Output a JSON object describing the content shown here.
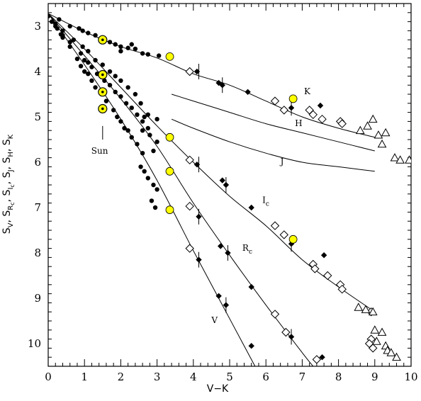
{
  "chart_data": {
    "type": "scatter",
    "xlabel": "V−K",
    "ylabel_text": "S_V, S_Rc, S_Ic, S_J, S_H, S_K",
    "xlim": [
      0,
      10
    ],
    "ylim": [
      10.5,
      2.5
    ],
    "x_ticks": [
      0,
      1,
      2,
      3,
      4,
      5,
      6,
      7,
      8,
      9,
      10
    ],
    "y_ticks": [
      3,
      4,
      5,
      6,
      7,
      8,
      9,
      10
    ],
    "colors": {
      "axis": "#000000",
      "highlight": "#ffff00"
    },
    "series_labels": [
      {
        "text": "K",
        "sub": "",
        "x": 7.05,
        "y": 4.5
      },
      {
        "text": "H",
        "sub": "",
        "x": 6.8,
        "y": 5.2
      },
      {
        "text": "J",
        "sub": "",
        "x": 6.4,
        "y": 6.05
      },
      {
        "text": "I",
        "sub": "c",
        "x": 5.9,
        "y": 6.9
      },
      {
        "text": "R",
        "sub": "c",
        "x": 5.35,
        "y": 7.95
      },
      {
        "text": "V",
        "sub": "",
        "x": 4.5,
        "y": 9.55
      }
    ],
    "annotation": {
      "text": "Sun",
      "x": 1.5,
      "y": 5.75,
      "marker_y": [
        5.2,
        5.5
      ]
    },
    "series": [
      {
        "name": "S_V",
        "fit": [
          [
            0,
            2.72
          ],
          [
            1,
            3.85
          ],
          [
            2,
            5.05
          ],
          [
            3,
            6.4
          ],
          [
            4,
            7.95
          ],
          [
            5,
            9.45
          ],
          [
            6,
            10.95
          ]
        ],
        "dots": [
          [
            0.0,
            2.78
          ],
          [
            0.2,
            3.0
          ],
          [
            0.35,
            3.18
          ],
          [
            0.4,
            3.25
          ],
          [
            0.6,
            3.45
          ],
          [
            0.8,
            3.72
          ],
          [
            0.9,
            3.88
          ],
          [
            1.0,
            4.0
          ],
          [
            1.1,
            4.05
          ],
          [
            1.2,
            4.2
          ],
          [
            1.3,
            4.35
          ],
          [
            1.45,
            4.45
          ],
          [
            1.6,
            4.65
          ],
          [
            1.8,
            4.85
          ],
          [
            1.9,
            5.0
          ],
          [
            2.0,
            5.1
          ],
          [
            2.1,
            5.25
          ],
          [
            2.2,
            5.3
          ],
          [
            2.3,
            5.45
          ],
          [
            2.45,
            5.6
          ],
          [
            2.6,
            5.8
          ],
          [
            2.55,
            6.1
          ],
          [
            2.65,
            6.2
          ],
          [
            2.75,
            6.35
          ],
          [
            2.9,
            6.5
          ],
          [
            3.0,
            6.6
          ],
          [
            2.85,
            6.85
          ],
          [
            2.95,
            7.0
          ]
        ],
        "sun": [
          1.5,
          4.82
        ],
        "yellow": [
          [
            3.35,
            7.05
          ]
        ],
        "filled_diamonds": [
          [
            4.15,
            8.15
          ],
          [
            4.9,
            9.15
          ],
          [
            4.7,
            8.95
          ],
          [
            5.6,
            10.05
          ]
        ],
        "filled_diamonds_err": [
          [
            4.15,
            8.15
          ],
          [
            4.9,
            9.15
          ]
        ],
        "open_diamonds": [
          [
            3.9,
            7.9
          ]
        ]
      },
      {
        "name": "S_Rc",
        "fit": [
          [
            0,
            2.72
          ],
          [
            1,
            3.65
          ],
          [
            2,
            4.6
          ],
          [
            3,
            5.65
          ],
          [
            4,
            6.9
          ],
          [
            5,
            8.05
          ],
          [
            6,
            9.15
          ],
          [
            7,
            10.2
          ],
          [
            7.3,
            10.5
          ]
        ],
        "dots": [
          [
            0.1,
            2.9
          ],
          [
            0.25,
            3.05
          ],
          [
            0.4,
            3.2
          ],
          [
            0.6,
            3.35
          ],
          [
            0.9,
            3.6
          ],
          [
            1.0,
            3.75
          ],
          [
            1.1,
            3.8
          ],
          [
            1.2,
            3.9
          ],
          [
            1.35,
            4.05
          ],
          [
            1.55,
            4.2
          ],
          [
            1.7,
            4.3
          ],
          [
            1.85,
            4.45
          ],
          [
            2.0,
            4.55
          ],
          [
            2.15,
            4.7
          ],
          [
            2.3,
            4.8
          ],
          [
            2.45,
            4.95
          ],
          [
            2.6,
            5.1
          ],
          [
            2.75,
            5.25
          ],
          [
            2.8,
            5.4
          ],
          [
            3.0,
            5.55
          ],
          [
            2.6,
            5.3
          ],
          [
            2.9,
            5.75
          ]
        ],
        "sun": [
          1.5,
          4.45
        ],
        "yellow": [
          [
            3.35,
            6.2
          ]
        ],
        "filled_diamonds": [
          [
            4.15,
            7.2
          ],
          [
            4.75,
            7.85
          ],
          [
            4.95,
            8.0
          ],
          [
            5.6,
            8.75
          ],
          [
            6.7,
            9.85
          ],
          [
            7.55,
            10.3
          ]
        ],
        "filled_diamonds_err": [
          [
            4.15,
            7.2
          ],
          [
            4.95,
            8.0
          ],
          [
            6.7,
            9.85
          ]
        ],
        "open_diamonds": [
          [
            3.9,
            6.97
          ],
          [
            6.25,
            9.35
          ],
          [
            6.55,
            9.75
          ],
          [
            7.4,
            10.35
          ]
        ]
      },
      {
        "name": "S_Ic",
        "fit": [
          [
            0,
            2.72
          ],
          [
            1,
            3.5
          ],
          [
            2,
            4.35
          ],
          [
            3,
            5.2
          ],
          [
            4,
            6.0
          ],
          [
            5,
            6.75
          ],
          [
            6,
            7.4
          ],
          [
            7,
            8.15
          ],
          [
            8,
            8.75
          ],
          [
            9,
            9.3
          ]
        ],
        "dots": [
          [
            0.2,
            2.95
          ],
          [
            0.4,
            3.1
          ],
          [
            0.7,
            3.3
          ],
          [
            0.95,
            3.45
          ],
          [
            1.1,
            3.55
          ],
          [
            1.3,
            3.75
          ],
          [
            1.5,
            3.85
          ],
          [
            1.7,
            4.0
          ],
          [
            1.85,
            4.1
          ],
          [
            2.0,
            4.2
          ],
          [
            2.2,
            4.35
          ],
          [
            2.4,
            4.5
          ],
          [
            2.55,
            4.7
          ],
          [
            2.75,
            4.95
          ],
          [
            3.0,
            5.05
          ],
          [
            2.65,
            5.0
          ]
        ],
        "sun": [
          1.5,
          4.07
        ],
        "yellow": [
          [
            3.35,
            5.45
          ],
          [
            6.75,
            7.7
          ]
        ],
        "filled_diamonds": [
          [
            4.1,
            6.05
          ],
          [
            4.8,
            6.4
          ],
          [
            4.9,
            6.5
          ],
          [
            5.6,
            7.0
          ],
          [
            6.7,
            7.8
          ],
          [
            7.6,
            8.05
          ]
        ],
        "filled_diamonds_err": [
          [
            4.15,
            6.05
          ],
          [
            4.9,
            6.5
          ],
          [
            6.7,
            7.8
          ]
        ],
        "open_diamonds": [
          [
            3.9,
            5.95
          ],
          [
            6.25,
            7.4
          ],
          [
            6.5,
            7.6
          ],
          [
            7.3,
            8.25
          ],
          [
            7.35,
            8.35
          ],
          [
            7.7,
            8.5
          ],
          [
            8.05,
            8.7
          ],
          [
            8.1,
            8.8
          ]
        ]
      },
      {
        "name": "S_K",
        "fit": [
          [
            0,
            2.72
          ],
          [
            1,
            3.12
          ],
          [
            2,
            3.45
          ],
          [
            3,
            3.7
          ],
          [
            4,
            4.05
          ],
          [
            5,
            4.3
          ],
          [
            6,
            4.65
          ],
          [
            7,
            5.0
          ],
          [
            8,
            5.25
          ],
          [
            9,
            5.45
          ]
        ],
        "dots": [
          [
            0.3,
            2.85
          ],
          [
            0.6,
            3.0
          ],
          [
            0.85,
            3.05
          ],
          [
            0.95,
            3.1
          ],
          [
            1.1,
            3.15
          ],
          [
            1.3,
            3.2
          ],
          [
            1.5,
            3.3
          ],
          [
            1.7,
            3.35
          ],
          [
            1.85,
            3.4
          ],
          [
            2.0,
            3.45
          ],
          [
            2.2,
            3.48
          ],
          [
            2.4,
            3.5
          ],
          [
            2.6,
            3.6
          ],
          [
            2.75,
            3.62
          ],
          [
            3.05,
            3.65
          ],
          [
            2.0,
            3.55
          ],
          [
            2.3,
            3.4
          ]
        ],
        "sun": [
          1.5,
          3.3
        ],
        "yellow": [
          [
            3.35,
            3.67
          ],
          [
            6.75,
            4.6
          ]
        ],
        "filled_diamonds": [
          [
            4.1,
            4.0
          ],
          [
            4.7,
            4.25
          ],
          [
            4.8,
            4.3
          ],
          [
            5.5,
            4.45
          ],
          [
            6.7,
            4.8
          ],
          [
            7.5,
            4.75
          ]
        ],
        "filled_diamonds_err": [
          [
            4.15,
            4.0
          ],
          [
            4.8,
            4.3
          ],
          [
            6.7,
            4.8
          ]
        ],
        "open_diamonds": [
          [
            3.9,
            4.0
          ],
          [
            6.25,
            4.65
          ],
          [
            6.5,
            4.85
          ],
          [
            7.2,
            4.85
          ],
          [
            7.3,
            4.95
          ],
          [
            7.55,
            5.05
          ],
          [
            8.05,
            5.1
          ],
          [
            8.1,
            5.15
          ]
        ],
        "open_triangles": [
          [
            8.6,
            5.3
          ],
          [
            8.8,
            5.2
          ],
          [
            8.95,
            5.05
          ],
          [
            9.1,
            5.4
          ],
          [
            9.2,
            5.6
          ],
          [
            9.3,
            5.35
          ],
          [
            9.55,
            5.9
          ],
          [
            9.7,
            5.95
          ],
          [
            9.95,
            5.95
          ]
        ]
      },
      {
        "name": "S_H",
        "fit": [
          [
            3.4,
            4.5
          ],
          [
            4,
            4.65
          ],
          [
            5,
            4.9
          ],
          [
            6,
            5.15
          ],
          [
            7,
            5.35
          ],
          [
            8,
            5.55
          ],
          [
            9,
            5.75
          ]
        ]
      },
      {
        "name": "S_J",
        "fit": [
          [
            3.4,
            5.05
          ],
          [
            4,
            5.25
          ],
          [
            5,
            5.55
          ],
          [
            6,
            5.8
          ],
          [
            7,
            6.0
          ],
          [
            8,
            6.1
          ],
          [
            9,
            6.2
          ]
        ]
      }
    ],
    "extra_open_diamonds": [
      [
        8.9,
        9.9
      ],
      [
        8.85,
        10.0
      ],
      [
        8.95,
        10.1
      ],
      [
        8.9,
        9.3
      ]
    ],
    "extra_open_triangles": [
      [
        8.55,
        9.2
      ],
      [
        8.75,
        9.25
      ],
      [
        8.95,
        9.3
      ],
      [
        9.0,
        9.7
      ],
      [
        9.2,
        9.75
      ],
      [
        9.05,
        9.95
      ],
      [
        9.3,
        10.05
      ],
      [
        9.35,
        10.15
      ],
      [
        9.45,
        10.2
      ],
      [
        9.6,
        10.3
      ]
    ]
  }
}
